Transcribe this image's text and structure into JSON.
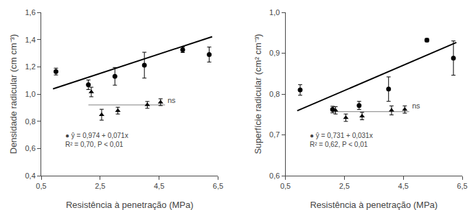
{
  "chart_data": [
    {
      "type": "scatter",
      "xlabel": "Resistência à penetração (MPa)",
      "ylabel": "Densidade radicular (cm cm⁻³)",
      "xlim": [
        0.5,
        6.5
      ],
      "xticks": [
        {
          "value": 0.5,
          "label": "0,5"
        },
        {
          "value": 2.5,
          "label": "2,5"
        },
        {
          "value": 4.5,
          "label": "4,5"
        },
        {
          "value": 6.5,
          "label": "6,5"
        }
      ],
      "ylim": [
        0.4,
        1.6
      ],
      "yticks": [
        {
          "value": 0.4,
          "label": "0,4"
        },
        {
          "value": 0.6,
          "label": "0,6"
        },
        {
          "value": 0.8,
          "label": "0,8"
        },
        {
          "value": 1.0,
          "label": "1,0"
        },
        {
          "value": 1.2,
          "label": "1,2"
        },
        {
          "value": 1.4,
          "label": "1,4"
        },
        {
          "value": 1.6,
          "label": "1,6"
        }
      ],
      "grid": false,
      "series": [
        {
          "type": "line",
          "color": "#000000",
          "x": [
            0.9,
            6.3
          ],
          "values": [
            1.0379,
            1.4213
          ]
        },
        {
          "type": "line",
          "color": "#999999",
          "x": [
            2.1,
            4.7
          ],
          "values": [
            0.92,
            0.92
          ]
        },
        {
          "type": "scatter",
          "marker": "circle",
          "color": "#000000",
          "x": [
            1.0,
            2.1,
            3.0,
            4.0,
            5.3,
            6.2
          ],
          "values": [
            1.165,
            1.068,
            1.13,
            1.212,
            1.325,
            1.29
          ],
          "errors": [
            0.025,
            0.035,
            0.065,
            0.095,
            0.02,
            0.055
          ]
        },
        {
          "type": "scatter",
          "marker": "triangle",
          "color": "#000000",
          "x": [
            2.2,
            2.55,
            3.1,
            4.1,
            4.55
          ],
          "values": [
            1.015,
            0.848,
            0.878,
            0.92,
            0.94
          ],
          "errors": [
            0.035,
            0.04,
            0.025,
            0.025,
            0.025
          ]
        }
      ],
      "annotations": [
        {
          "text": "ns",
          "x": 4.75,
          "y": 0.955
        },
        {
          "text": "● ŷ = 0,974 + 0,071x\nR² = 0,70, P < 0,01"
        }
      ]
    },
    {
      "type": "scatter",
      "xlabel": "Resistência à penetração (MPa)",
      "ylabel": "Superfície radicular (cm² cm⁻³)",
      "xlim": [
        0.5,
        6.5
      ],
      "xticks": [
        {
          "value": 0.5,
          "label": "0,5"
        },
        {
          "value": 2.5,
          "label": "2,5"
        },
        {
          "value": 4.5,
          "label": "4,5"
        },
        {
          "value": 6.5,
          "label": "6,5"
        }
      ],
      "ylim": [
        0.6,
        1.0
      ],
      "yticks": [
        {
          "value": 0.6,
          "label": "0,6"
        },
        {
          "value": 0.7,
          "label": "0,7"
        },
        {
          "value": 0.8,
          "label": "0,8"
        },
        {
          "value": 0.9,
          "label": "0,9"
        },
        {
          "value": 1.0,
          "label": "1,0"
        }
      ],
      "grid": false,
      "series": [
        {
          "type": "line",
          "color": "#000000",
          "x": [
            0.9,
            6.3
          ],
          "values": [
            0.7589,
            0.9263
          ]
        },
        {
          "type": "line",
          "color": "#999999",
          "x": [
            2.1,
            4.7
          ],
          "values": [
            0.757,
            0.757
          ]
        },
        {
          "type": "scatter",
          "marker": "circle",
          "color": "#000000",
          "x": [
            1.0,
            2.1,
            3.0,
            4.0,
            5.3,
            6.2
          ],
          "values": [
            0.81,
            0.762,
            0.772,
            0.812,
            0.932,
            0.888
          ],
          "errors": [
            0.013,
            0.008,
            0.01,
            0.03,
            0.004,
            0.042
          ]
        },
        {
          "type": "scatter",
          "marker": "triangle",
          "color": "#000000",
          "x": [
            2.2,
            2.55,
            3.1,
            4.1,
            4.55
          ],
          "values": [
            0.76,
            0.742,
            0.746,
            0.76,
            0.762
          ],
          "errors": [
            0.009,
            0.009,
            0.009,
            0.011,
            0.009
          ]
        }
      ],
      "annotations": [
        {
          "text": "ns",
          "x": 4.75,
          "y": 0.772
        },
        {
          "text": "● ŷ = 0,731 + 0,031x\nR² = 0,62, P < 0,01"
        }
      ]
    }
  ]
}
